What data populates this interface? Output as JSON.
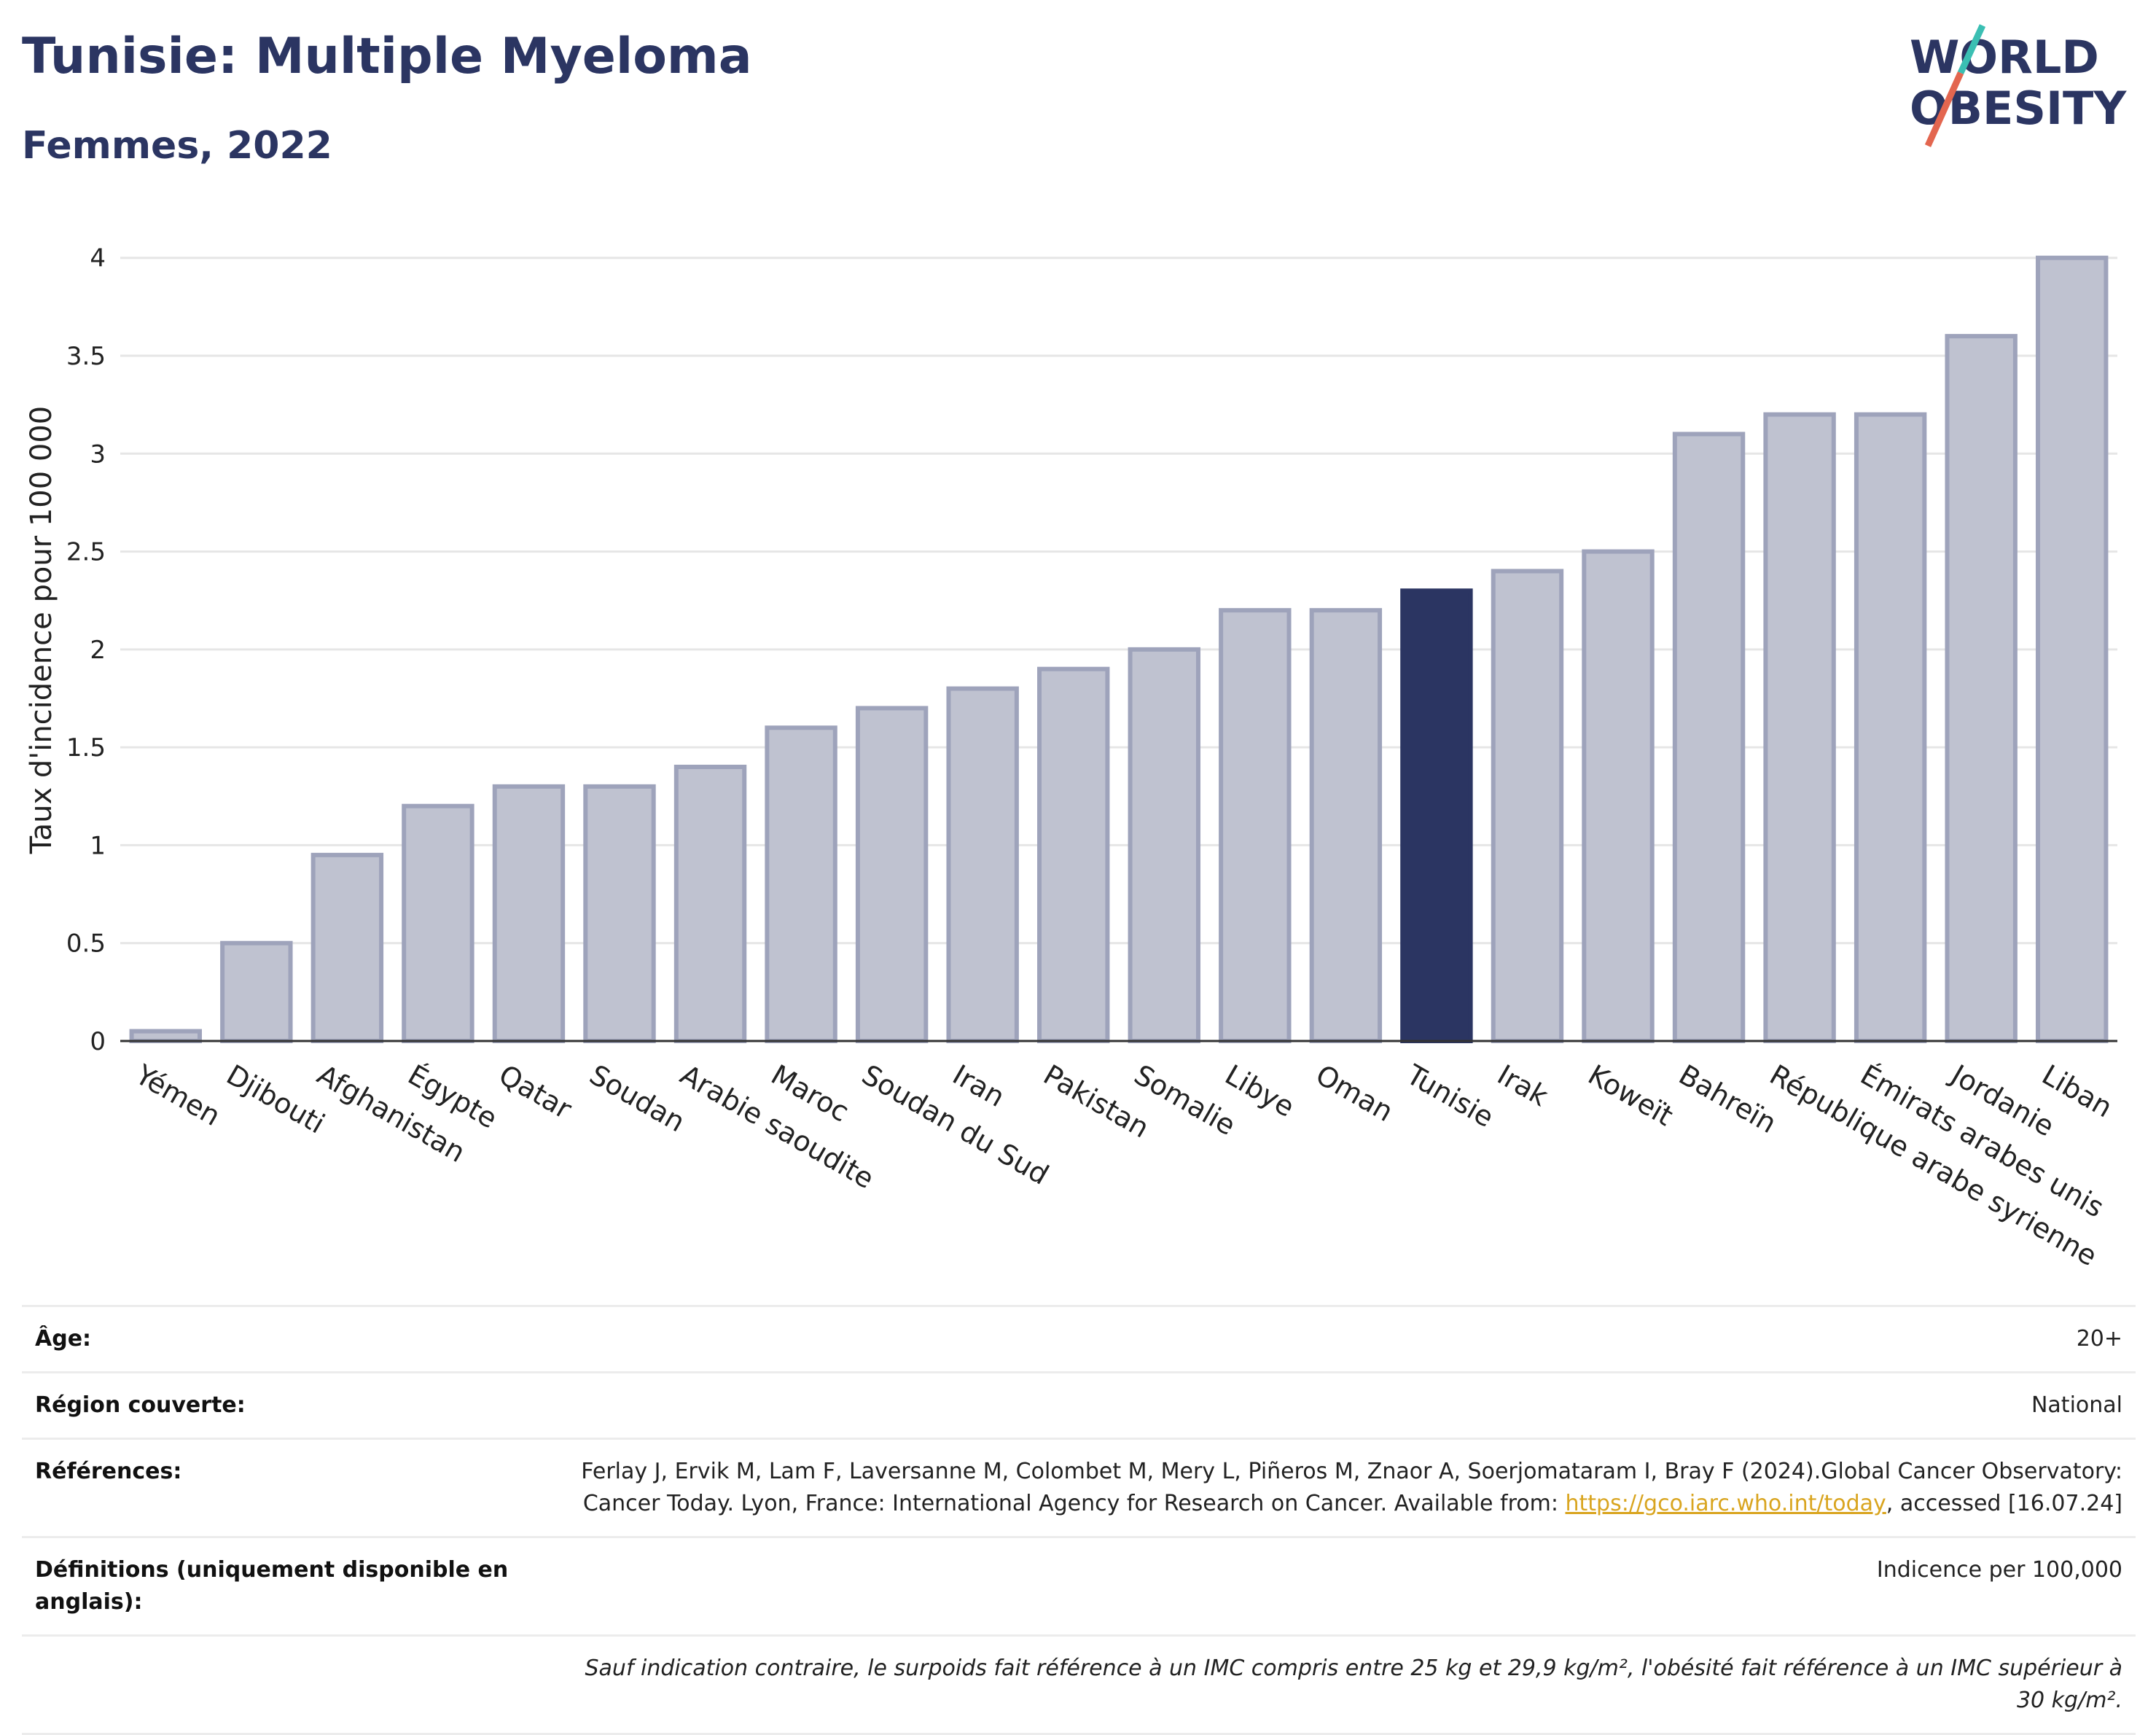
{
  "header": {
    "title": "Tunisie: Multiple Myeloma",
    "subtitle": "Femmes, 2022"
  },
  "logo": {
    "line1": "WORLD",
    "line2": "OBESITY",
    "accent_colors": [
      "#3bbfb3",
      "#e3664f"
    ]
  },
  "chart_data": {
    "type": "bar",
    "ylabel": "Taux d'incidence pour 100 000",
    "ylim": [
      0,
      4.2
    ],
    "yticks": [
      0,
      0.5,
      1,
      1.5,
      2,
      2.5,
      3,
      3.5,
      4
    ],
    "ytick_labels": [
      "0",
      "0.5",
      "1",
      "1.5",
      "2",
      "2.5",
      "3",
      "3.5",
      "4"
    ],
    "grid": true,
    "categories": [
      "Yémen",
      "Djibouti",
      "Afghanistan",
      "Égypte",
      "Qatar",
      "Soudan",
      "Arabie saoudite",
      "Maroc",
      "Soudan du Sud",
      "Iran",
      "Pakistan",
      "Somalie",
      "Libye",
      "Oman",
      "Tunisie",
      "Irak",
      "Koweït",
      "Bahreïn",
      "République arabe syrienne",
      "Émirats arabes unis",
      "Jordanie",
      "Liban"
    ],
    "values": [
      0.05,
      0.5,
      0.95,
      1.2,
      1.3,
      1.3,
      1.4,
      1.6,
      1.7,
      1.8,
      1.9,
      2.0,
      2.2,
      2.2,
      2.3,
      2.4,
      2.5,
      3.1,
      3.2,
      3.2,
      3.6,
      4.0
    ],
    "highlight": "Tunisie",
    "colors": {
      "bar_fill": "#bfc2d0",
      "bar_stroke": "#9ea3bb",
      "highlight": "#2b3562"
    }
  },
  "info": {
    "age_label": "Âge:",
    "age_value": "20+",
    "region_label": "Région couverte:",
    "region_value": "National",
    "refs_label": "Références:",
    "refs_text1": "Ferlay J, Ervik M, Lam F, Laversanne M, Colombet M, Mery L, Piñeros M, Znaor A, Soerjomataram I, Bray F (2024).Global Cancer Observatory: Cancer Today. Lyon, France: International Agency for Research on Cancer. Available from: ",
    "refs_link": "https://gco.iarc.who.int/today",
    "refs_text2": ", accessed [16.07.24]",
    "defs_label": "Définitions (uniquement disponible en anglais):",
    "defs_value": "Indicence per 100,000",
    "footnote": "Sauf indication contraire, le surpoids fait référence à un IMC compris entre 25 kg et 29,9 kg/m², l'obésité fait référence à un IMC supérieur à 30 kg/m²."
  }
}
